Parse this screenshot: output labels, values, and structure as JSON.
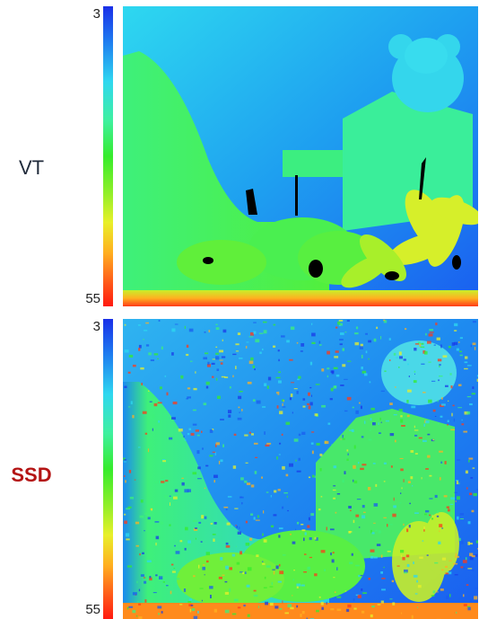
{
  "top_panel": {
    "label": "VT",
    "label_color": "#1f2a3a",
    "colorbar": {
      "max_label": "3",
      "min_label": "55"
    }
  },
  "bottom_panel": {
    "label": "SSD",
    "label_color": "#b41414",
    "colorbar": {
      "max_label": "3",
      "min_label": "55"
    }
  }
}
